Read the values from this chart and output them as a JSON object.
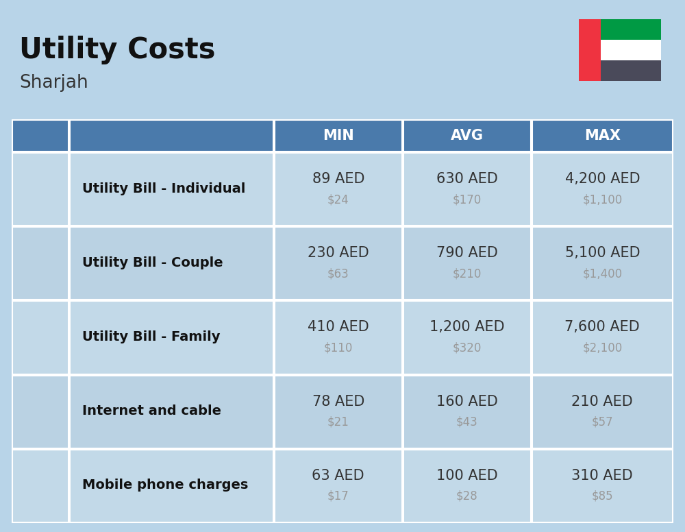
{
  "title": "Utility Costs",
  "subtitle": "Sharjah",
  "background_color": "#b8d4e8",
  "header_bg_color": "#4a7aab",
  "header_text_color": "#ffffff",
  "row_bg_even": "#c2d9e8",
  "row_bg_odd": "#bad2e3",
  "divider_color": "#ffffff",
  "col_headers": [
    "MIN",
    "AVG",
    "MAX"
  ],
  "rows": [
    {
      "label": "Utility Bill - Individual",
      "min_aed": "89 AED",
      "min_usd": "$24",
      "avg_aed": "630 AED",
      "avg_usd": "$170",
      "max_aed": "4,200 AED",
      "max_usd": "$1,100"
    },
    {
      "label": "Utility Bill - Couple",
      "min_aed": "230 AED",
      "min_usd": "$63",
      "avg_aed": "790 AED",
      "avg_usd": "$210",
      "max_aed": "5,100 AED",
      "max_usd": "$1,400"
    },
    {
      "label": "Utility Bill - Family",
      "min_aed": "410 AED",
      "min_usd": "$110",
      "avg_aed": "1,200 AED",
      "avg_usd": "$320",
      "max_aed": "7,600 AED",
      "max_usd": "$2,100"
    },
    {
      "label": "Internet and cable",
      "min_aed": "78 AED",
      "min_usd": "$21",
      "avg_aed": "160 AED",
      "avg_usd": "$43",
      "max_aed": "210 AED",
      "max_usd": "$57"
    },
    {
      "label": "Mobile phone charges",
      "min_aed": "63 AED",
      "min_usd": "$17",
      "avg_aed": "100 AED",
      "avg_usd": "$28",
      "max_aed": "310 AED",
      "max_usd": "$85"
    }
  ],
  "title_fontsize": 30,
  "subtitle_fontsize": 19,
  "header_fontsize": 15,
  "label_fontsize": 14,
  "value_fontsize": 15,
  "usd_fontsize": 12,
  "aed_color": "#333333",
  "usd_color": "#999999",
  "label_color": "#111111",
  "flag_colors": {
    "red": "#EF3340",
    "green": "#009A44",
    "white": "#FFFFFF",
    "black": "#4a4a5a"
  }
}
